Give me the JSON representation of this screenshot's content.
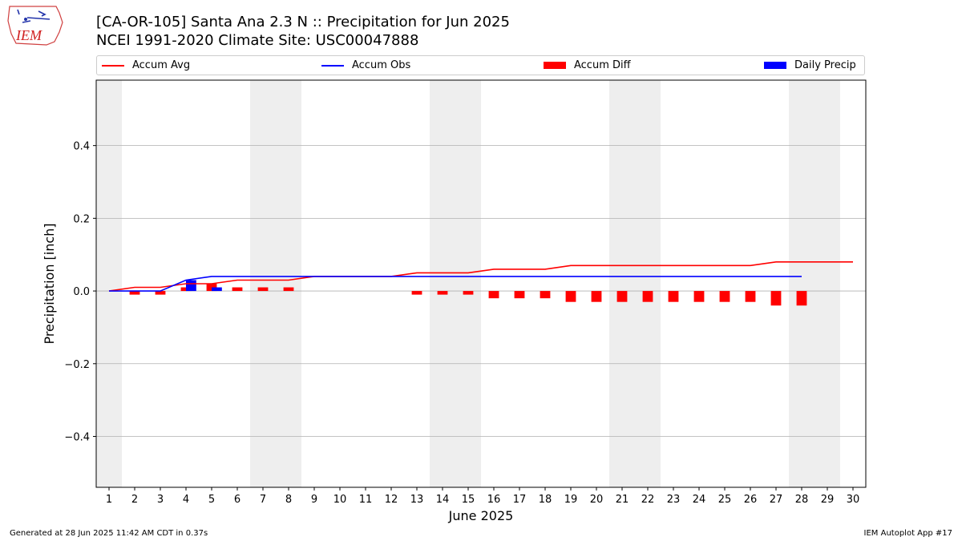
{
  "header": {
    "logo_text": "IEM",
    "title_line1": "[CA-OR-105] Santa Ana 2.3 N :: Precipitation for Jun 2025",
    "title_line2": "NCEI 1991-2020 Climate Site: USC00047888"
  },
  "footer": {
    "generated": "Generated at 28 Jun 2025 11:42 AM CDT in 0.37s",
    "app": "IEM Autoplot App #17"
  },
  "colors": {
    "accum_avg": "#ff0000",
    "accum_obs": "#0000ff",
    "accum_diff": "#ff0000",
    "daily_precip": "#0000ff",
    "weekend_shade": "#eeeeee",
    "grid": "#b0b0b0"
  },
  "chart_data": {
    "type": "line",
    "xlabel": "June 2025",
    "ylabel": "Precipitation [inch]",
    "xlim": [
      0.5,
      30.5
    ],
    "ylim": [
      -0.54,
      0.58
    ],
    "x_ticks": [
      1,
      2,
      3,
      4,
      5,
      6,
      7,
      8,
      9,
      10,
      11,
      12,
      13,
      14,
      15,
      16,
      17,
      18,
      19,
      20,
      21,
      22,
      23,
      24,
      25,
      26,
      27,
      28,
      29,
      30
    ],
    "y_ticks": [
      -0.4,
      -0.2,
      0.0,
      0.2,
      0.4
    ],
    "y_tick_labels": [
      "−0.4",
      "−0.2",
      "0.0",
      "0.2",
      "0.4"
    ],
    "grid": "horizontal",
    "legend_position": "top",
    "weekend_days": [
      1,
      7,
      8,
      14,
      15,
      21,
      22,
      28,
      29
    ],
    "series": [
      {
        "name": "Accum Avg",
        "type": "line",
        "x": [
          1,
          2,
          3,
          4,
          5,
          6,
          7,
          8,
          9,
          10,
          11,
          12,
          13,
          14,
          15,
          16,
          17,
          18,
          19,
          20,
          21,
          22,
          23,
          24,
          25,
          26,
          27,
          28,
          29,
          30
        ],
        "values": [
          0.0,
          0.01,
          0.01,
          0.02,
          0.02,
          0.03,
          0.03,
          0.03,
          0.04,
          0.04,
          0.04,
          0.04,
          0.05,
          0.05,
          0.05,
          0.06,
          0.06,
          0.06,
          0.07,
          0.07,
          0.07,
          0.07,
          0.07,
          0.07,
          0.07,
          0.07,
          0.08,
          0.08,
          0.08,
          0.08
        ]
      },
      {
        "name": "Accum Obs",
        "type": "line",
        "x": [
          1,
          2,
          3,
          4,
          5,
          6,
          7,
          8,
          9,
          10,
          11,
          12,
          13,
          14,
          15,
          16,
          17,
          18,
          19,
          20,
          21,
          22,
          23,
          24,
          25,
          26,
          27,
          28
        ],
        "values": [
          0.0,
          0.0,
          0.0,
          0.03,
          0.04,
          0.04,
          0.04,
          0.04,
          0.04,
          0.04,
          0.04,
          0.04,
          0.04,
          0.04,
          0.04,
          0.04,
          0.04,
          0.04,
          0.04,
          0.04,
          0.04,
          0.04,
          0.04,
          0.04,
          0.04,
          0.04,
          0.04,
          0.04
        ]
      },
      {
        "name": "Accum Diff",
        "type": "bar",
        "x": [
          1,
          2,
          3,
          4,
          5,
          6,
          7,
          8,
          9,
          10,
          11,
          12,
          13,
          14,
          15,
          16,
          17,
          18,
          19,
          20,
          21,
          22,
          23,
          24,
          25,
          26,
          27,
          28
        ],
        "values": [
          0.0,
          -0.01,
          -0.01,
          0.01,
          0.02,
          0.01,
          0.01,
          0.01,
          0.0,
          0.0,
          0.0,
          0.0,
          -0.01,
          -0.01,
          -0.01,
          -0.02,
          -0.02,
          -0.02,
          -0.03,
          -0.03,
          -0.03,
          -0.03,
          -0.03,
          -0.03,
          -0.03,
          -0.03,
          -0.04,
          -0.04
        ]
      },
      {
        "name": "Daily Precip",
        "type": "bar",
        "x": [
          4,
          5
        ],
        "values": [
          0.03,
          0.01
        ]
      }
    ]
  }
}
